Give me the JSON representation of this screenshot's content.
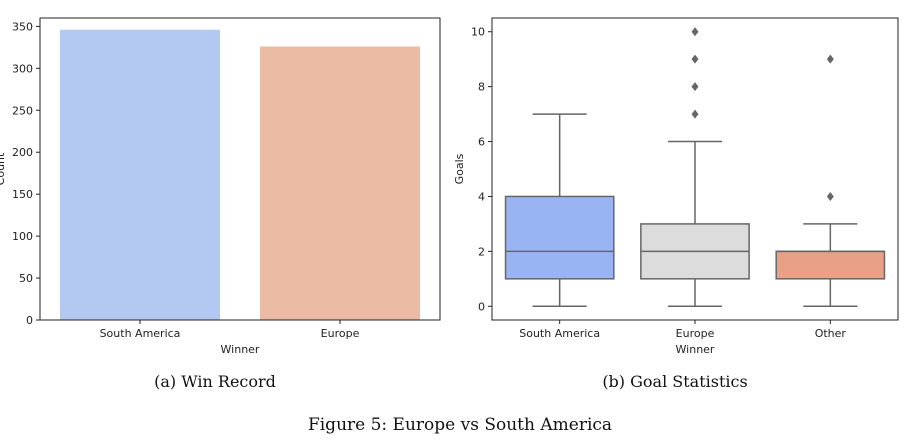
{
  "figure_caption": "Figure 5: Europe vs South America",
  "chart_data": [
    {
      "type": "bar",
      "caption": "(a) Win Record",
      "categories": [
        "South America",
        "Europe"
      ],
      "values": [
        346,
        326
      ],
      "colors": [
        "#b4c9f2",
        "#ecbba4"
      ],
      "xlabel": "Winner",
      "ylabel": "Count",
      "ylim": [
        0,
        360
      ],
      "yticks": [
        0,
        50,
        100,
        150,
        200,
        250,
        300,
        350
      ],
      "grid": false
    },
    {
      "type": "box",
      "caption": "(b) Goal Statistics",
      "categories": [
        "South America",
        "Europe",
        "Other"
      ],
      "boxes": [
        {
          "whisker_low": 0,
          "q1": 1,
          "median": 2,
          "q3": 4,
          "whisker_high": 7,
          "outliers": []
        },
        {
          "whisker_low": 0,
          "q1": 1,
          "median": 2,
          "q3": 3,
          "whisker_high": 6,
          "outliers": [
            7,
            8,
            9,
            10
          ]
        },
        {
          "whisker_low": 0,
          "q1": 1,
          "median": 2,
          "q3": 2,
          "whisker_high": 3,
          "outliers": [
            4,
            9
          ]
        }
      ],
      "colors": [
        "#98b4f2",
        "#dcdcdc",
        "#e8a086"
      ],
      "xlabel": "Winner",
      "ylabel": "Goals",
      "ylim": [
        -0.5,
        10.5
      ],
      "yticks": [
        0,
        2,
        4,
        6,
        8,
        10
      ],
      "grid": false
    }
  ]
}
